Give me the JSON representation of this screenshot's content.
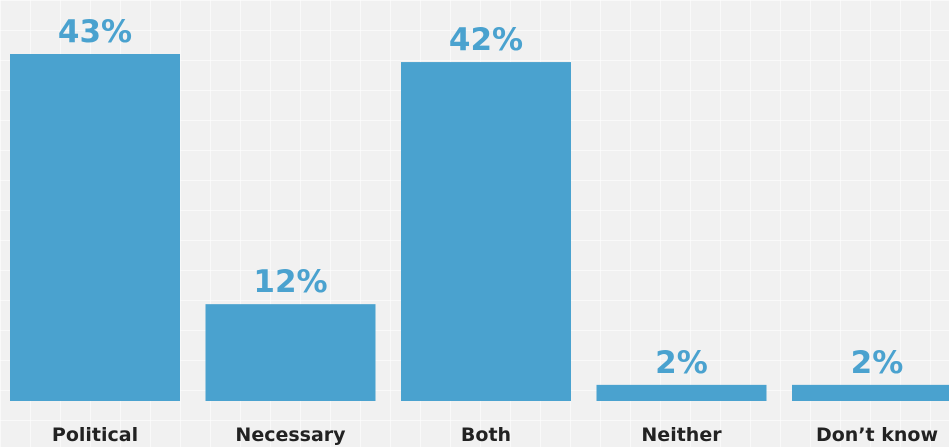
{
  "chart_data": {
    "type": "bar",
    "categories": [
      "Political",
      "Necessary",
      "Both",
      "Neither",
      "Don’t know"
    ],
    "values": [
      43,
      12,
      42,
      2,
      2
    ],
    "value_labels": [
      "43%",
      "12%",
      "42%",
      "2%",
      "2%"
    ],
    "unit": "%",
    "ylim": [
      0,
      43
    ],
    "grid": false,
    "legend": "none",
    "colors": {
      "bar": "#4aa2cf",
      "value_label": "#4aa2cf",
      "category_label": "#222222",
      "background": "#f1f1f1"
    }
  }
}
